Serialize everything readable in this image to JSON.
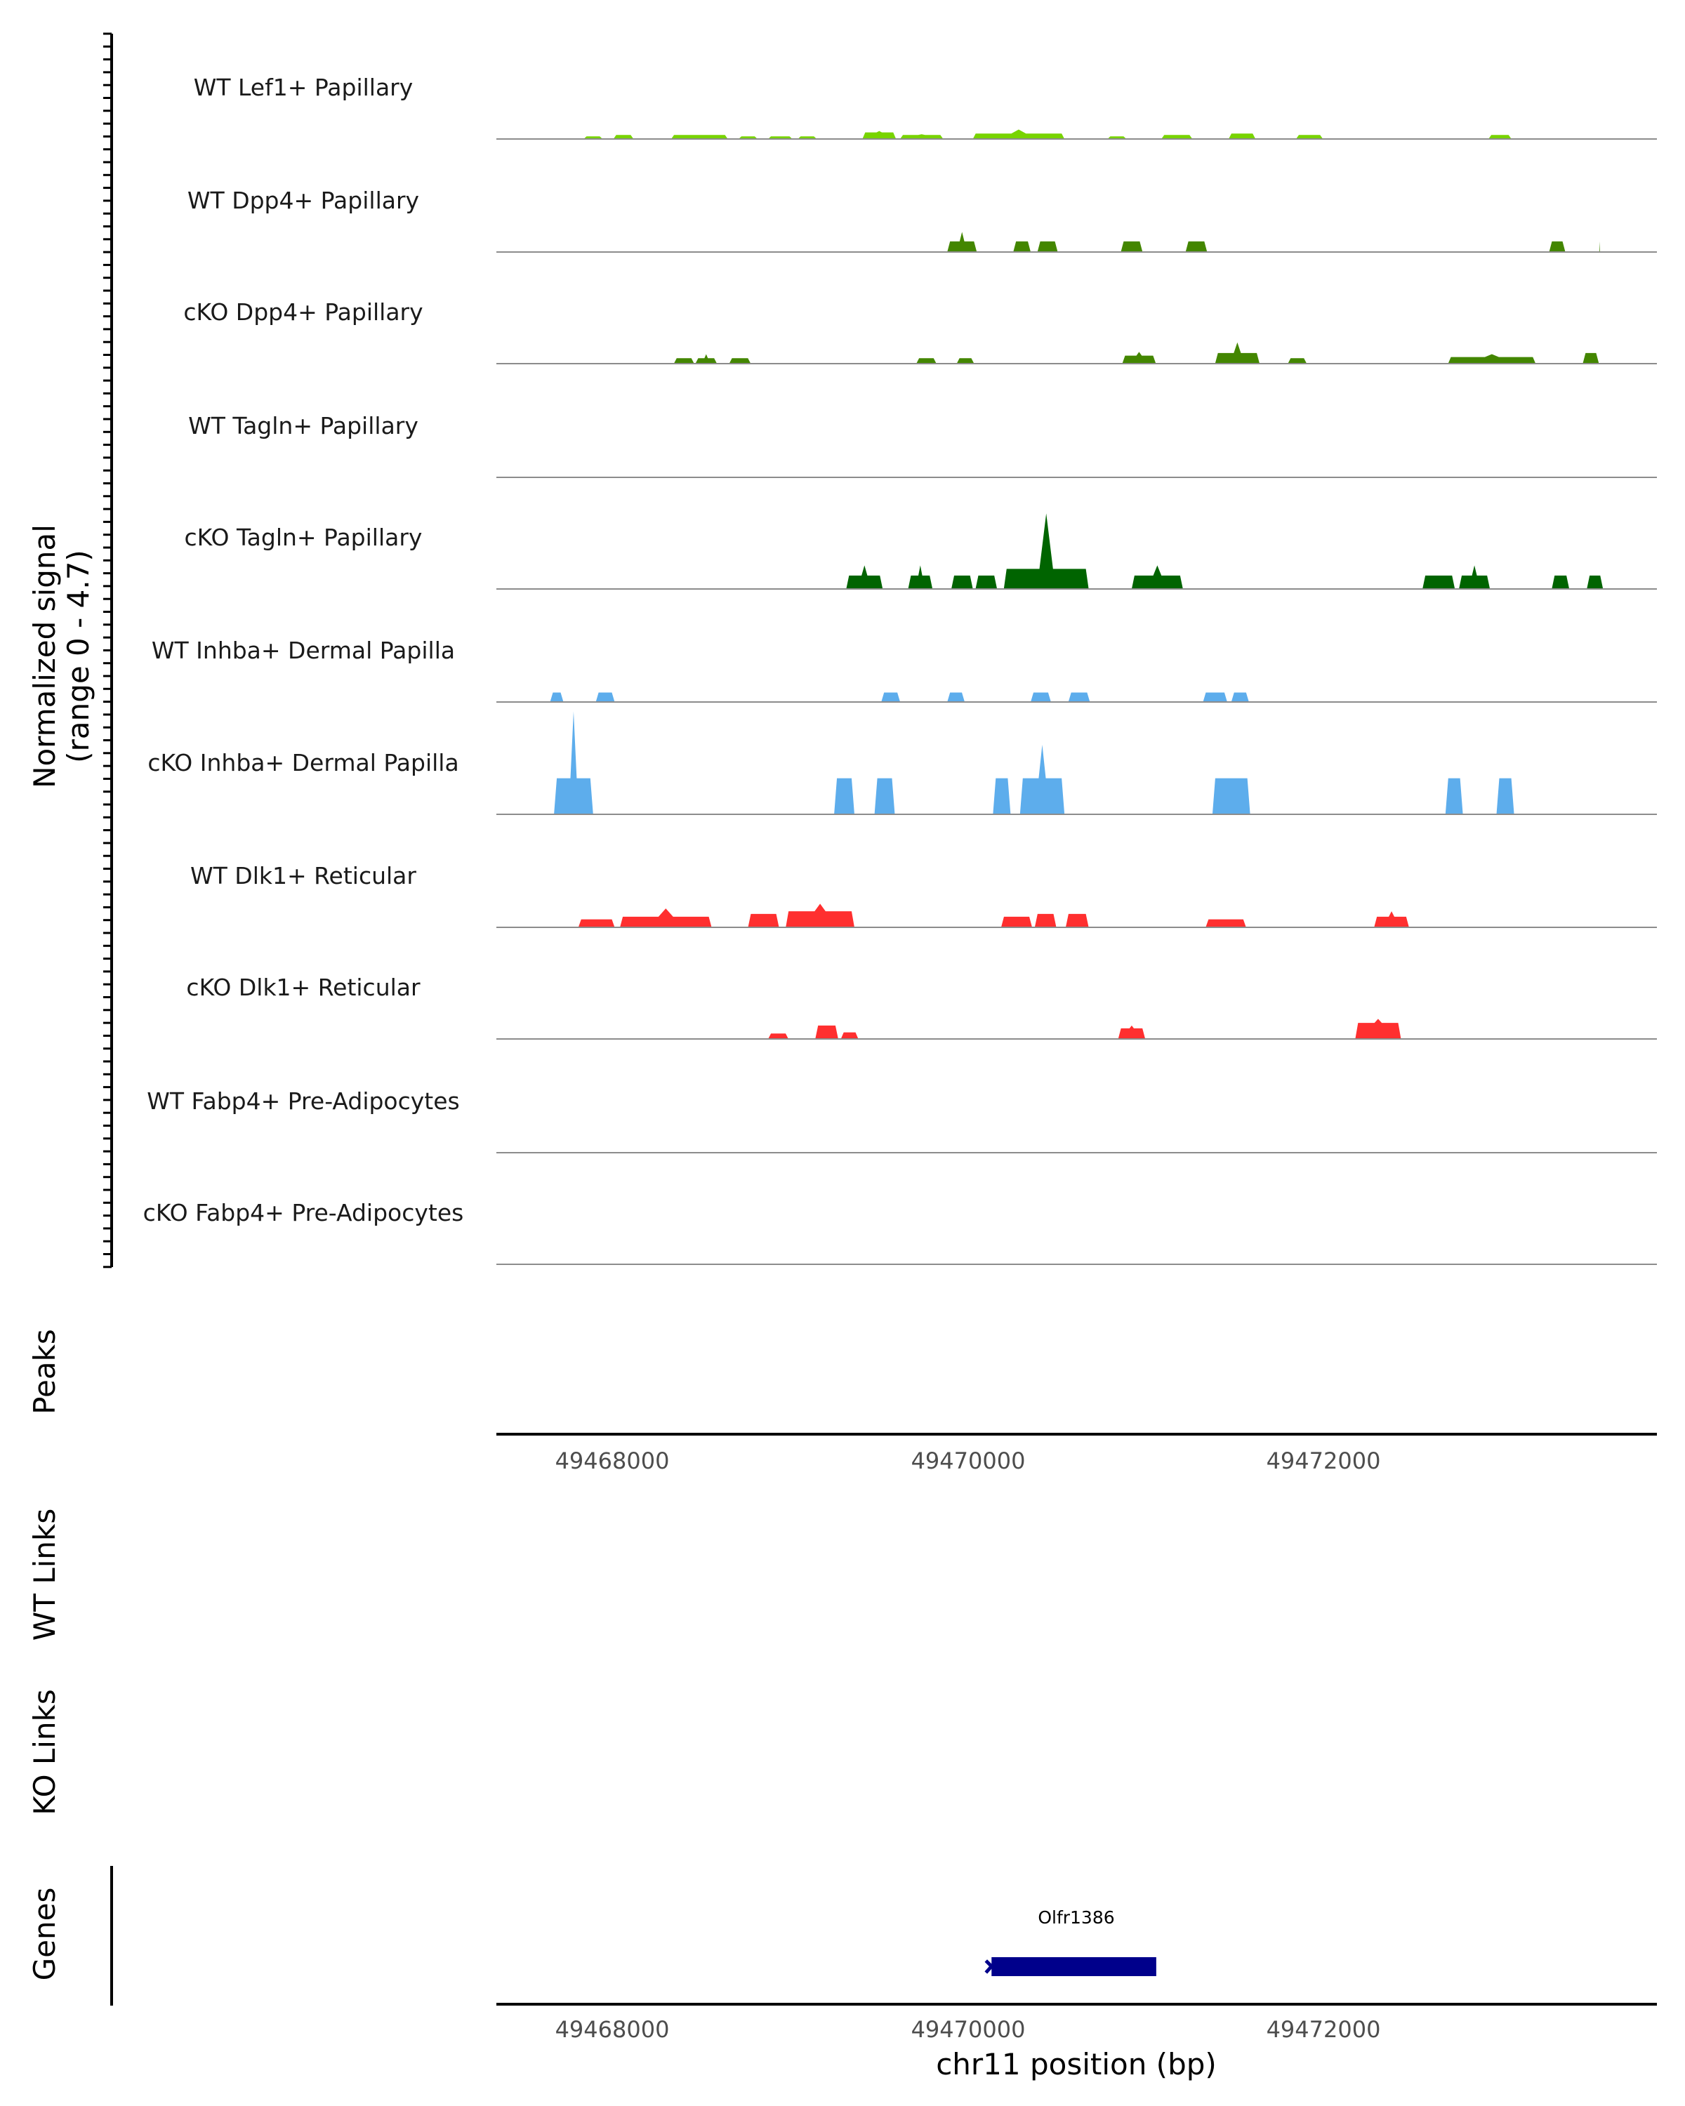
{
  "chart_data": {
    "type": "area",
    "title": "",
    "xlabel": "chr11 position (bp)",
    "ylabel": "Normalized signal",
    "ylabel_range": "(range 0 - 4.7)",
    "xlim": [
      49467350,
      49473875
    ],
    "ylim": [
      0,
      4.7
    ],
    "x_ticks": [
      49468000,
      49470000,
      49472000
    ],
    "x_tick_labels": [
      "49468000",
      "49470000",
      "49472000"
    ],
    "panel_labels": {
      "peaks": "Peaks",
      "wt_links": "WT Links",
      "ko_links": "KO Links",
      "genes": "Genes"
    },
    "peak_format": "[start_bp, end_bp, plateau_signal, max_signal]",
    "series": [
      {
        "name": "WT Lef1+ Papillary",
        "color": "#78D400",
        "peaks": [
          [
            49467841,
            49467947,
            0.11,
            0.11
          ],
          [
            49468008,
            49468121,
            0.17,
            0.17
          ],
          [
            49468333,
            49468651,
            0.17,
            0.17
          ],
          [
            49468712,
            49468818,
            0.11,
            0.11
          ],
          [
            49468878,
            49469014,
            0.11,
            0.11
          ],
          [
            49469045,
            49469151,
            0.11,
            0.11
          ],
          [
            49469408,
            49469597,
            0.28,
            0.34
          ],
          [
            49469620,
            49469862,
            0.17,
            0.2
          ],
          [
            49470029,
            49470544,
            0.23,
            0.4
          ],
          [
            49470786,
            49470892,
            0.11,
            0.11
          ],
          [
            49471089,
            49471263,
            0.17,
            0.17
          ],
          [
            49471467,
            49471618,
            0.23,
            0.23
          ],
          [
            49471846,
            49471997,
            0.17,
            0.17
          ],
          [
            49472928,
            49473057,
            0.17,
            0.17
          ]
        ]
      },
      {
        "name": "WT Dpp4+ Papillary",
        "color": "#438600",
        "peaks": [
          [
            49469885,
            49470051,
            0.45,
            0.85
          ],
          [
            49470256,
            49470354,
            0.45,
            0.45
          ],
          [
            49470392,
            49470506,
            0.45,
            0.45
          ],
          [
            49470861,
            49470983,
            0.45,
            0.45
          ],
          [
            49471225,
            49471346,
            0.45,
            0.45
          ],
          [
            49473269,
            49473360,
            0.45,
            0.45
          ],
          [
            49473541,
            49473564,
            0,
            0.45
          ]
        ]
      },
      {
        "name": "cKO Dpp4+ Papillary",
        "color": "#438600",
        "peaks": [
          [
            49468348,
            49468462,
            0.23,
            0.23
          ],
          [
            49468469,
            49468590,
            0.23,
            0.4
          ],
          [
            49468659,
            49468780,
            0.23,
            0.23
          ],
          [
            49469711,
            49469824,
            0.23,
            0.23
          ],
          [
            49469938,
            49470036,
            0.23,
            0.23
          ],
          [
            49470869,
            49471058,
            0.34,
            0.5
          ],
          [
            49471391,
            49471641,
            0.45,
            0.9
          ],
          [
            49471800,
            49471906,
            0.23,
            0.23
          ],
          [
            49472701,
            49473193,
            0.28,
            0.4
          ],
          [
            49473458,
            49473549,
            0.45,
            0.45
          ]
        ]
      },
      {
        "name": "WT Tagln+ Papillary",
        "color": "#006400",
        "peaks": []
      },
      {
        "name": "cKO Tagln+ Papillary",
        "color": "#006400",
        "peaks": [
          [
            49469317,
            49469522,
            0.57,
            1.0
          ],
          [
            49469665,
            49469802,
            0.57,
            1.0
          ],
          [
            49469908,
            49470029,
            0.57,
            0.57
          ],
          [
            49470044,
            49470165,
            0.57,
            0.57
          ],
          [
            49470203,
            49470680,
            0.85,
            3.2
          ],
          [
            49470922,
            49471210,
            0.57,
            1.0
          ],
          [
            49472557,
            49472739,
            0.57,
            0.57
          ],
          [
            49472762,
            49472936,
            0.57,
            1.0
          ],
          [
            49473284,
            49473382,
            0.57,
            0.57
          ],
          [
            49473481,
            49473572,
            0.57,
            0.57
          ]
        ]
      },
      {
        "name": "WT Inhba+ Dermal Papilla",
        "color": "#5DADEC",
        "peaks": [
          [
            49467652,
            49467727,
            0.4,
            0.4
          ],
          [
            49467909,
            49468015,
            0.4,
            0.4
          ],
          [
            49469514,
            49469620,
            0.4,
            0.4
          ],
          [
            49469885,
            49469983,
            0.4,
            0.4
          ],
          [
            49470354,
            49470468,
            0.4,
            0.4
          ],
          [
            49470566,
            49470687,
            0.4,
            0.4
          ],
          [
            49471323,
            49471459,
            0.4,
            0.4
          ],
          [
            49471482,
            49471581,
            0.4,
            0.4
          ]
        ]
      },
      {
        "name": "cKO Inhba+ Dermal Papilla",
        "color": "#5DADEC",
        "peaks": [
          [
            49467674,
            49467894,
            1.53,
            4.36
          ],
          [
            49469249,
            49469363,
            1.53,
            1.53
          ],
          [
            49469476,
            49469590,
            1.53,
            1.53
          ],
          [
            49470142,
            49470241,
            1.53,
            1.53
          ],
          [
            49470294,
            49470544,
            1.53,
            2.95
          ],
          [
            49471376,
            49471588,
            1.53,
            1.53
          ],
          [
            49472686,
            49472784,
            1.53,
            1.53
          ],
          [
            49472973,
            49473072,
            1.53,
            1.53
          ]
        ]
      },
      {
        "name": "WT Dlk1+ Reticular",
        "color": "#FF2F2F",
        "peaks": [
          [
            49467811,
            49468015,
            0.34,
            0.34
          ],
          [
            49468045,
            49468560,
            0.45,
            0.8
          ],
          [
            49468765,
            49468939,
            0.57,
            0.57
          ],
          [
            49468977,
            49469363,
            0.68,
            1.0
          ],
          [
            49470188,
            49470362,
            0.45,
            0.45
          ],
          [
            49470377,
            49470498,
            0.57,
            0.57
          ],
          [
            49470551,
            49470680,
            0.57,
            0.57
          ],
          [
            49471338,
            49471565,
            0.34,
            0.34
          ],
          [
            49472285,
            49472481,
            0.45,
            0.68
          ]
        ]
      },
      {
        "name": "cKO Dlk1+ Reticular",
        "color": "#FF2F2F",
        "peaks": [
          [
            49468878,
            49468992,
            0.23,
            0.23
          ],
          [
            49469143,
            49469272,
            0.57,
            0.57
          ],
          [
            49469287,
            49469385,
            0.28,
            0.28
          ],
          [
            49470846,
            49470998,
            0.45,
            0.57
          ],
          [
            49472179,
            49472436,
            0.68,
            0.85
          ]
        ]
      },
      {
        "name": "WT Fabp4+ Pre-Adipocytes",
        "color": "#999999",
        "peaks": []
      },
      {
        "name": "cKO Fabp4+ Pre-Adipocytes",
        "color": "#999999",
        "peaks": []
      }
    ],
    "genes": [
      {
        "name": "Olfr1386",
        "start": 49470134,
        "end": 49471060,
        "strand": "+",
        "color": "#00008B"
      }
    ]
  }
}
